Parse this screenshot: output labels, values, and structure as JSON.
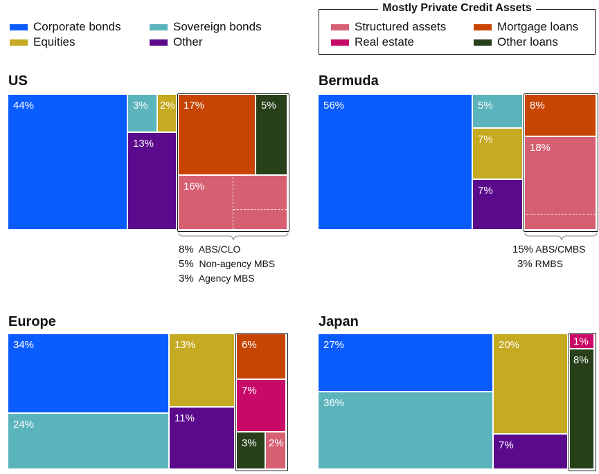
{
  "colors": {
    "corporate": "#0a5cff",
    "sovereign": "#5bb4bc",
    "equities": "#c6aa21",
    "other": "#5b0a8c",
    "structured": "#d65f72",
    "mortgage": "#c74402",
    "realestate": "#c70a67",
    "otherloans": "#27401a"
  },
  "legend": {
    "left": [
      {
        "label": "Corporate bonds",
        "color": "#0a5cff"
      },
      {
        "label": "Sovereign bonds",
        "color": "#5bb4bc"
      },
      {
        "label": "Equities",
        "color": "#c6aa21"
      },
      {
        "label": "Other",
        "color": "#5b0a8c"
      }
    ],
    "private_credit_title": "Mostly Private Credit Assets",
    "right": [
      {
        "label": "Structured assets",
        "color": "#d65f72"
      },
      {
        "label": "Mortgage loans",
        "color": "#c74402"
      },
      {
        "label": "Real estate",
        "color": "#c70a67"
      },
      {
        "label": "Other loans",
        "color": "#27401a"
      }
    ]
  },
  "chart_data": [
    {
      "type": "treemap",
      "title": "US",
      "series": [
        {
          "name": "Corporate bonds",
          "value": 44,
          "label": "44%"
        },
        {
          "name": "Sovereign bonds",
          "value": 3,
          "label": "3%"
        },
        {
          "name": "Equities",
          "value": 2,
          "label": "2%"
        },
        {
          "name": "Other",
          "value": 13,
          "label": "13%"
        },
        {
          "name": "Mortgage loans",
          "value": 17,
          "label": "17%"
        },
        {
          "name": "Other loans",
          "value": 5,
          "label": "5%"
        },
        {
          "name": "Structured assets",
          "value": 16,
          "label": "16%"
        }
      ],
      "structured_breakdown": [
        {
          "value": "8%",
          "label": "ABS/CLO"
        },
        {
          "value": "5%",
          "label": "Non-agency MBS"
        },
        {
          "value": "3%",
          "label": "Agency MBS"
        }
      ]
    },
    {
      "type": "treemap",
      "title": "Bermuda",
      "series": [
        {
          "name": "Corporate bonds",
          "value": 56,
          "label": "56%"
        },
        {
          "name": "Sovereign bonds",
          "value": 5,
          "label": "5%"
        },
        {
          "name": "Equities",
          "value": 7,
          "label": "7%"
        },
        {
          "name": "Other",
          "value": 7,
          "label": "7%"
        },
        {
          "name": "Mortgage loans",
          "value": 8,
          "label": "8%"
        },
        {
          "name": "Structured assets",
          "value": 18,
          "label": "18%"
        }
      ],
      "structured_breakdown": [
        {
          "value": "15%",
          "label": "ABS/CMBS"
        },
        {
          "value": "3%",
          "label": "RMBS"
        }
      ]
    },
    {
      "type": "treemap",
      "title": "Europe",
      "series": [
        {
          "name": "Corporate bonds",
          "value": 34,
          "label": "34%"
        },
        {
          "name": "Sovereign bonds",
          "value": 24,
          "label": "24%"
        },
        {
          "name": "Equities",
          "value": 13,
          "label": "13%"
        },
        {
          "name": "Other",
          "value": 11,
          "label": "11%"
        },
        {
          "name": "Mortgage loans",
          "value": 6,
          "label": "6%"
        },
        {
          "name": "Real estate",
          "value": 7,
          "label": "7%"
        },
        {
          "name": "Other loans",
          "value": 3,
          "label": "3%"
        },
        {
          "name": "Structured assets",
          "value": 2,
          "label": "2%"
        }
      ]
    },
    {
      "type": "treemap",
      "title": "Japan",
      "series": [
        {
          "name": "Corporate bonds",
          "value": 27,
          "label": "27%"
        },
        {
          "name": "Sovereign bonds",
          "value": 36,
          "label": "36%"
        },
        {
          "name": "Equities",
          "value": 20,
          "label": "20%"
        },
        {
          "name": "Other",
          "value": 7,
          "label": "7%"
        },
        {
          "name": "Real estate",
          "value": 1,
          "label": "1%"
        },
        {
          "name": "Other loans",
          "value": 8,
          "label": "8%"
        }
      ]
    }
  ]
}
